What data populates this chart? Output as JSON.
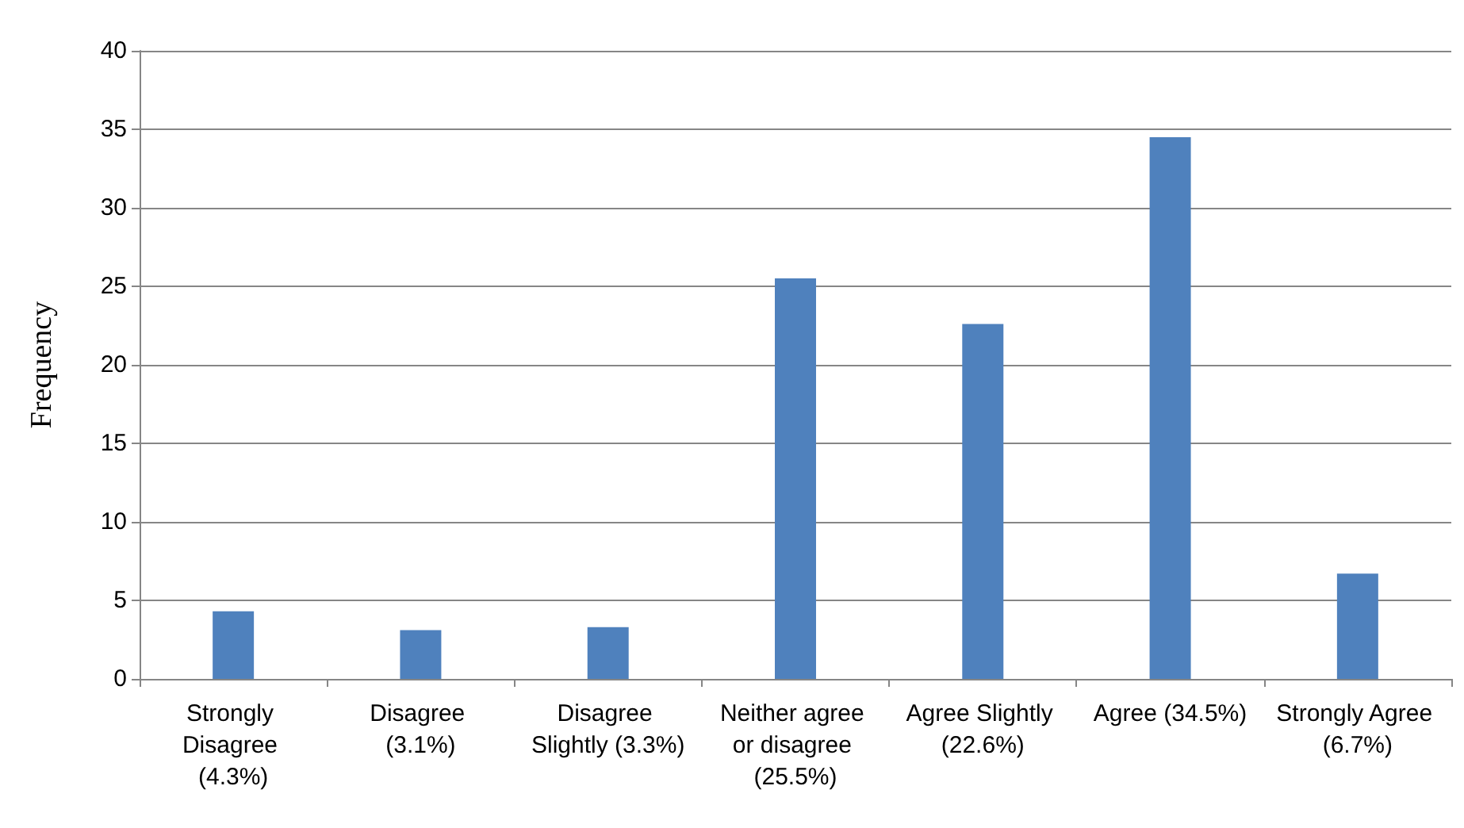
{
  "chart_data": {
    "type": "bar",
    "ylabel": "Frequency",
    "categories": [
      "Strongly Disagree (4.3%)",
      "Disagree (3.1%)",
      "Disagree Slightly (3.3%)",
      "Neither agree or disagree (25.5%)",
      "Agree Slightly (22.6%)",
      "Agree (34.5%)",
      "Strongly Agree (6.7%)"
    ],
    "values": [
      4.3,
      3.1,
      3.3,
      25.5,
      22.6,
      34.5,
      6.7
    ],
    "color": "#4f81bd",
    "ylim": [
      0,
      40
    ],
    "yticks": [
      0,
      5,
      10,
      15,
      20,
      25,
      30,
      35,
      40
    ],
    "grid": "y"
  }
}
